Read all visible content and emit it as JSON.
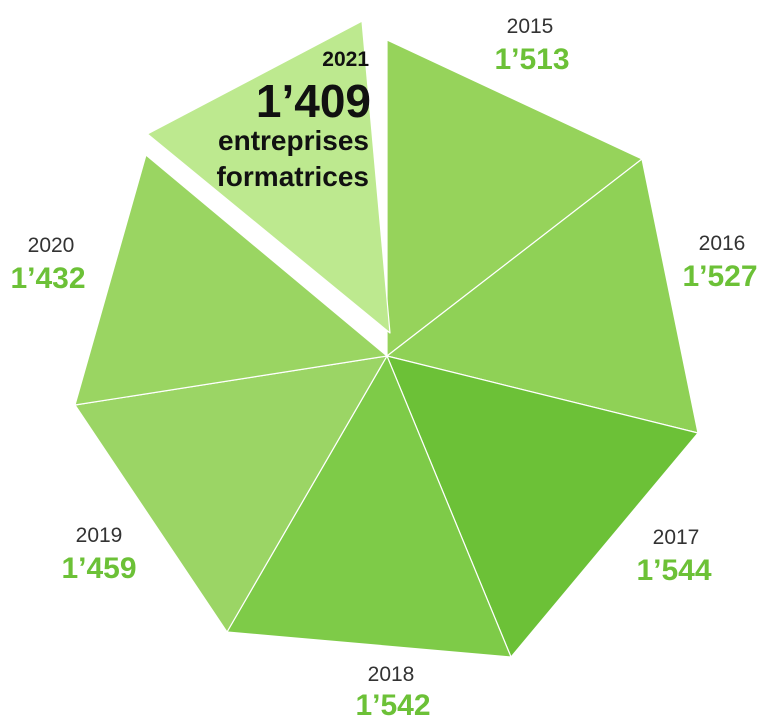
{
  "chart_data": {
    "type": "pie",
    "title": "",
    "unit": "entreprises formatrices",
    "colors": [
      "#96d35b",
      "#8fd156",
      "#6cc137",
      "#7ecb48",
      "#9bd565",
      "#9ad562",
      "#bde98f"
    ],
    "label_color": "#6cc137",
    "slices": [
      {
        "label": "2015",
        "value": "1’513",
        "n": 1513
      },
      {
        "label": "2016",
        "value": "1’527",
        "n": 1527
      },
      {
        "label": "2017",
        "value": "1’544",
        "n": 1544
      },
      {
        "label": "2018",
        "value": "1’542",
        "n": 1542
      },
      {
        "label": "2019",
        "value": "1’459",
        "n": 1459
      },
      {
        "label": "2020",
        "value": "1’432",
        "n": 1432
      },
      {
        "label": "2021",
        "value": "1’409",
        "n": 1409,
        "highlight": true
      }
    ]
  }
}
